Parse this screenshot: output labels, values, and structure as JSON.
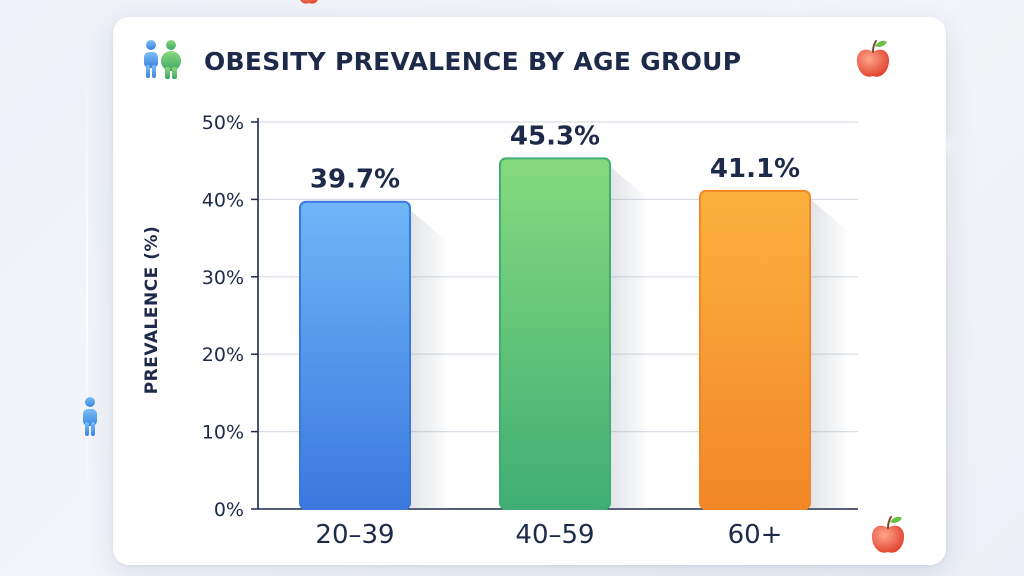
{
  "chart_data": {
    "type": "bar",
    "title": "OBESITY PREVALENCE BY AGE GROUP",
    "xlabel": "",
    "ylabel": "PREVALENCE (%)",
    "categories": [
      "20–39",
      "40–59",
      "60+"
    ],
    "values": [
      39.7,
      45.3,
      41.1
    ],
    "data_labels": [
      "39.7%",
      "45.3%",
      "41.1%"
    ],
    "ylim": [
      0,
      50
    ],
    "yticks": [
      0,
      10,
      20,
      30,
      40,
      50
    ],
    "ytick_labels": [
      "0%",
      "10%",
      "20%",
      "30%",
      "40%",
      "50%"
    ],
    "grid": true,
    "legend": "none",
    "colors": [
      [
        "#6fb6f7",
        "#3a78de"
      ],
      [
        "#86da7e",
        "#3fae74"
      ],
      [
        "#fbb13e",
        "#f28726"
      ]
    ]
  },
  "icons": {
    "title_left": "people-icon",
    "title_right": "apple-icon",
    "corner_bottom_right": "apple-icon",
    "left_edge": "person-icon",
    "top_edge": "apple-icon"
  }
}
